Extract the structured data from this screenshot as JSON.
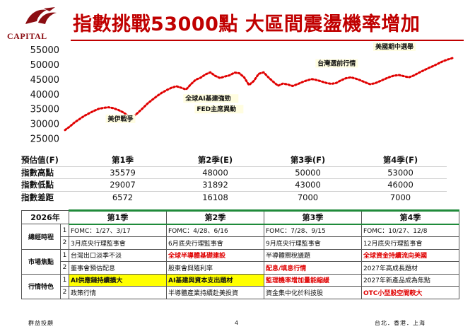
{
  "logo": {
    "text": "CAPITAL"
  },
  "title": "指數挑戰53000點 大區間震盪機率增加",
  "chart_data": {
    "type": "line",
    "y_ticks": [
      "55000",
      "50000",
      "45000",
      "40000",
      "35000",
      "30000",
      "25000"
    ],
    "ylim": [
      22500,
      55000
    ],
    "color": "#e00000",
    "series": [
      {
        "values": [
          27800,
          29000,
          30400,
          31500,
          32600,
          33500,
          34300,
          35000,
          35300,
          35500,
          35200,
          34600,
          33800,
          32600,
          32200,
          33600,
          35100,
          36700,
          38000,
          39300,
          40400,
          41300,
          42100,
          42600,
          42100,
          41500,
          43300,
          44800,
          45500,
          46600,
          47300,
          46100,
          45400,
          45900,
          46300,
          47200,
          47000,
          45600,
          43000,
          44400,
          46800,
          47300,
          45600,
          44100,
          42800,
          43500,
          43200,
          42700,
          43300,
          44000,
          44600,
          45000,
          44700,
          44200,
          43700,
          43400,
          43700,
          44600,
          45300,
          45600,
          45200,
          44600,
          43900,
          43300,
          43600,
          44300,
          45000,
          45700,
          46200,
          46400,
          46000,
          45600,
          46200,
          47100,
          47900,
          48700,
          49400,
          50200,
          51000,
          51600,
          52100
        ]
      }
    ],
    "annotations": [
      {
        "label": "美伊戰爭",
        "index": 10
      },
      {
        "label": "FED主席異動",
        "index": 31
      },
      {
        "label": "全球AI基建強勁",
        "index": 38
      },
      {
        "label": "台灣選前行情",
        "index": 58
      },
      {
        "label": "美國期中選舉",
        "index": 67
      }
    ]
  },
  "estimate": {
    "header": [
      "預估值(F)",
      "第1季",
      "第2季(E)",
      "第3季(F)",
      "第4季(F)"
    ],
    "rows": [
      [
        "指數高點",
        "35579",
        "48000",
        "50000",
        "53000"
      ],
      [
        "指數低點",
        "29007",
        "31892",
        "43000",
        "46000"
      ],
      [
        "指數差距",
        "6572",
        "16108",
        "7000",
        "7000"
      ]
    ]
  },
  "calendar": {
    "year": "2026年",
    "quarters": [
      "第1季",
      "第2季",
      "第3季",
      "第4季"
    ],
    "groups": [
      {
        "name": "總經時程",
        "rows": [
          {
            "n": "1",
            "cells": [
              "FOMC：1/27、3/17",
              "FOMC：4/28、6/16",
              "FOMC：7/28、9/15",
              "FOMC：10/27、12/8"
            ]
          },
          {
            "n": "2",
            "cells": [
              "3月底央行理監事會",
              "6月底央行理監事會",
              "9月底央行理監事會",
              "12月底央行理監事會"
            ]
          }
        ]
      },
      {
        "name": "市場焦點",
        "rows": [
          {
            "n": "1",
            "cells": [
              "台灣出口淡季不淡",
              "全球半導體基礎建設",
              "半導體關稅議題",
              "全球資金持續流向美國"
            ]
          },
          {
            "n": "2",
            "cells": [
              "董事會預估配息",
              "股東會與殖利率",
              "配息/填息行情",
              "2027年高成長題材"
            ]
          }
        ]
      },
      {
        "name": "行情特色",
        "rows": [
          {
            "n": "1",
            "cells": [
              "AI供應鏈持續擴大",
              "AI基建與資本支出題材",
              "監理機率增加量能縮緩",
              "2027年新產品成為焦點"
            ]
          },
          {
            "n": "2",
            "cells": [
              "政策行情",
              "半導體產業持續赴美投資",
              "資金集中化於科技股",
              "OTC小型股空間較大"
            ]
          }
        ]
      }
    ]
  },
  "footer": {
    "left": "群益投顧",
    "page": "4",
    "right": "台北．香港．上海"
  }
}
